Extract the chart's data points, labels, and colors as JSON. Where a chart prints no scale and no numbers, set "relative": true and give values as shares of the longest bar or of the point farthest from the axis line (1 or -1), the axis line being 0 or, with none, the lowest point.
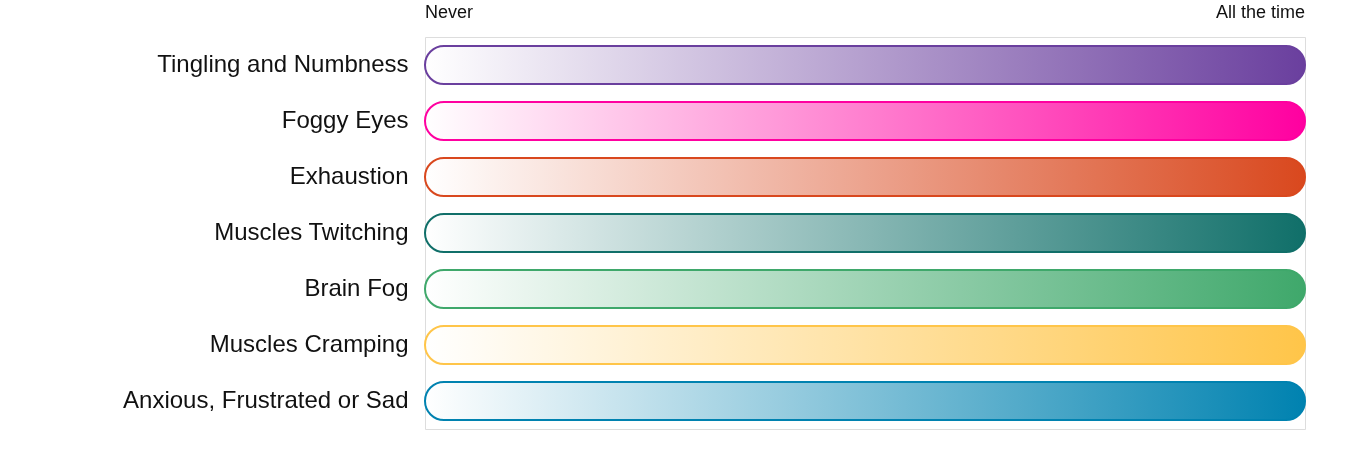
{
  "chart_data": {
    "type": "bar",
    "orientation": "horizontal",
    "relative": true,
    "categories": [
      "Tingling and Numbness",
      "Foggy Eyes",
      "Exhaustion",
      "Muscles Twitching",
      "Brain Fog",
      "Muscles Cramping",
      "Anxious, Frustrated or Sad"
    ],
    "values": [
      1,
      1,
      1,
      1,
      1,
      1,
      1
    ],
    "colors": [
      "#6a3f9e",
      "#ff00a0",
      "#d9481e",
      "#106f69",
      "#3fa86b",
      "#ffc549",
      "#0082b0"
    ],
    "annotations": [
      "Never",
      "All the time"
    ]
  }
}
